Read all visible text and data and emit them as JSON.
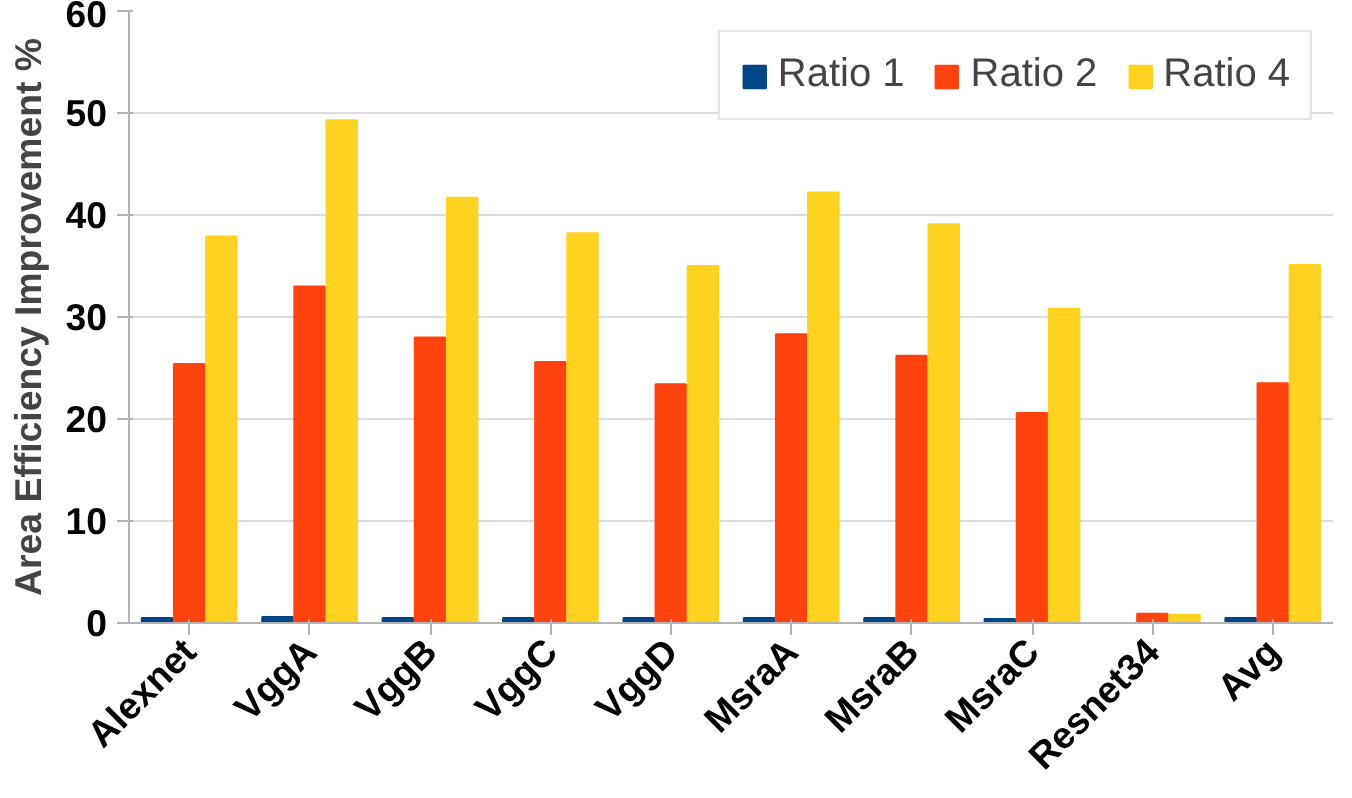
{
  "chart_data": {
    "type": "bar",
    "ylabel": "Area Efficiency Improvement %",
    "categories": [
      "Alexnet",
      "VggA",
      "VggB",
      "VggC",
      "VggD",
      "MsraA",
      "MsraB",
      "MsraC",
      "Resnet34",
      "Avg"
    ],
    "series": [
      {
        "name": "Ratio 1",
        "color": "#004586",
        "values": [
          0.5,
          0.6,
          0.5,
          0.5,
          0.5,
          0.5,
          0.5,
          0.4,
          null,
          0.5
        ]
      },
      {
        "name": "Ratio 2",
        "color": "#ff420e",
        "values": [
          25.4,
          33,
          28,
          25.6,
          23.4,
          28.3,
          26.2,
          20.6,
          0.9,
          23.5
        ]
      },
      {
        "name": "Ratio 4",
        "color": "#ffd320",
        "values": [
          37.9,
          49.3,
          41.7,
          38.2,
          35,
          42.2,
          39.1,
          30.8,
          0.8,
          35.1
        ]
      }
    ],
    "ylim": [
      0,
      60
    ],
    "yticks": [
      0,
      10,
      20,
      30,
      40,
      50,
      60
    ],
    "grid": "y",
    "legend": "top right"
  }
}
